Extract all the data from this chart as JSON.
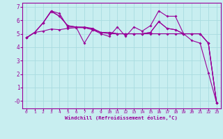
{
  "background_color": "#c8eef0",
  "grid_color": "#a8dce0",
  "line_color": "#990099",
  "xlabel": "Windchill (Refroidissement éolien,°C)",
  "xlim": [
    -0.5,
    23.5
  ],
  "ylim": [
    -0.55,
    7.3
  ],
  "x_ticks": [
    0,
    1,
    2,
    3,
    4,
    5,
    6,
    7,
    8,
    9,
    10,
    11,
    12,
    13,
    14,
    15,
    16,
    17,
    18,
    19,
    20,
    21,
    22,
    23
  ],
  "y_ticks": [
    0,
    1,
    2,
    3,
    4,
    5,
    6,
    7
  ],
  "y_tick_labels": [
    "-0",
    "1",
    "2",
    "3",
    "4",
    "5",
    "6",
    "7"
  ],
  "series1": [
    4.7,
    5.1,
    5.8,
    6.7,
    6.5,
    5.5,
    5.5,
    4.3,
    5.3,
    5.0,
    4.8,
    5.5,
    4.8,
    5.5,
    5.2,
    5.6,
    6.7,
    6.3,
    6.3,
    5.0,
    4.5,
    4.3,
    2.1,
    -0.15
  ],
  "series2": [
    4.7,
    5.1,
    5.8,
    6.7,
    6.3,
    5.6,
    5.5,
    5.5,
    5.4,
    5.1,
    5.1,
    5.0,
    5.0,
    5.0,
    5.0,
    5.1,
    5.9,
    5.4,
    5.3,
    5.0,
    5.0,
    5.0,
    4.3,
    -0.15
  ],
  "series3": [
    4.7,
    5.1,
    5.2,
    5.35,
    5.3,
    5.4,
    5.45,
    5.45,
    5.35,
    5.1,
    5.0,
    5.0,
    5.0,
    5.0,
    5.0,
    5.0,
    5.0,
    5.0,
    5.0,
    5.0,
    5.0,
    5.0,
    4.3,
    -0.15
  ],
  "series4": [
    4.7,
    5.1,
    5.8,
    6.65,
    6.3,
    5.6,
    5.5,
    5.45,
    5.3,
    5.1,
    5.1,
    5.0,
    5.0,
    5.0,
    5.0,
    5.1,
    5.9,
    5.4,
    5.3,
    5.0,
    5.0,
    5.0,
    4.3,
    -0.15
  ]
}
